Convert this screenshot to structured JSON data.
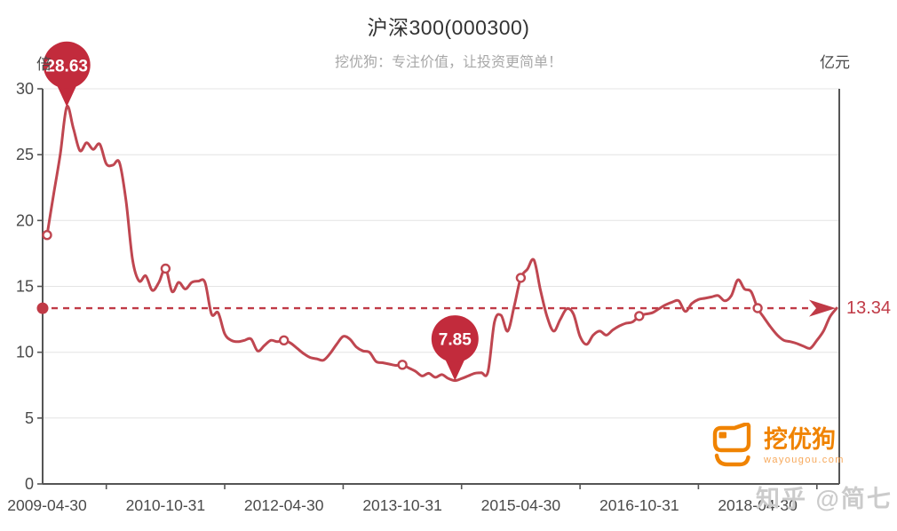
{
  "header": {
    "title": "沪深300(000300)",
    "subtitle": "挖优狗：专注价值，让投资更简单！"
  },
  "branding": {
    "logo_text": "挖优狗",
    "logo_domain": "wayougou.com",
    "logo_color": "#f08300",
    "watermark": "知乎 @简七"
  },
  "colors": {
    "line": "#bf4650",
    "marker_fill": "#ffffff",
    "balloon": "#c22b3c",
    "reference": "#c03a46",
    "axis": "#555555",
    "grid": "#e4e4e4",
    "tick_text": "#4a4a4a",
    "title_text": "#333333",
    "subtitle_text": "#a8a8a8",
    "watermark_text": "#cbcbcb"
  },
  "chart_data": {
    "type": "line",
    "title": "沪深300(000300)",
    "y_axis_unit": "倍",
    "right_axis_unit": "亿元",
    "ylim": [
      0,
      30
    ],
    "y_ticks": [
      0,
      5,
      10,
      15,
      20,
      25,
      30
    ],
    "grid": true,
    "legend": "none",
    "x_tick_labels": [
      "2009-04-30",
      "2010-10-31",
      "2012-04-30",
      "2013-10-31",
      "2015-04-30",
      "2016-10-31",
      "2018-04-30"
    ],
    "x_tick_positions": [
      0,
      18,
      36,
      54,
      72,
      90,
      108
    ],
    "x": [
      "2009-04",
      "2009-05",
      "2009-06",
      "2009-07",
      "2009-08",
      "2009-09",
      "2009-10",
      "2009-11",
      "2009-12",
      "2010-01",
      "2010-02",
      "2010-03",
      "2010-04",
      "2010-05",
      "2010-06",
      "2010-07",
      "2010-08",
      "2010-09",
      "2010-10",
      "2010-11",
      "2010-12",
      "2011-01",
      "2011-02",
      "2011-03",
      "2011-04",
      "2011-05",
      "2011-06",
      "2011-07",
      "2011-08",
      "2011-09",
      "2011-10",
      "2011-11",
      "2011-12",
      "2012-01",
      "2012-02",
      "2012-03",
      "2012-04",
      "2012-05",
      "2012-06",
      "2012-07",
      "2012-08",
      "2012-09",
      "2012-10",
      "2012-11",
      "2012-12",
      "2013-01",
      "2013-02",
      "2013-03",
      "2013-04",
      "2013-05",
      "2013-06",
      "2013-07",
      "2013-08",
      "2013-09",
      "2013-10",
      "2013-11",
      "2013-12",
      "2014-01",
      "2014-02",
      "2014-03",
      "2014-04",
      "2014-05",
      "2014-06",
      "2014-07",
      "2014-08",
      "2014-09",
      "2014-10",
      "2014-11",
      "2014-12",
      "2015-01",
      "2015-02",
      "2015-03",
      "2015-04",
      "2015-05",
      "2015-06",
      "2015-07",
      "2015-08",
      "2015-09",
      "2015-10",
      "2015-11",
      "2015-12",
      "2016-01",
      "2016-02",
      "2016-03",
      "2016-04",
      "2016-05",
      "2016-06",
      "2016-07",
      "2016-08",
      "2016-09",
      "2016-10",
      "2016-11",
      "2016-12",
      "2017-01",
      "2017-02",
      "2017-03",
      "2017-04",
      "2017-05",
      "2017-06",
      "2017-07",
      "2017-08",
      "2017-09",
      "2017-10",
      "2017-11",
      "2017-12",
      "2018-01",
      "2018-02",
      "2018-03",
      "2018-04",
      "2018-05",
      "2018-06",
      "2018-07",
      "2018-08",
      "2018-09",
      "2018-10",
      "2018-11",
      "2018-12",
      "2019-01",
      "2019-02",
      "2019-03",
      "2019-04"
    ],
    "values": [
      18.9,
      22.0,
      25.0,
      28.63,
      27.0,
      25.3,
      25.9,
      25.4,
      25.8,
      24.3,
      24.2,
      24.4,
      21.5,
      17.0,
      15.4,
      15.8,
      14.7,
      15.3,
      16.35,
      14.6,
      15.3,
      14.8,
      15.3,
      15.4,
      15.3,
      12.9,
      13.0,
      11.4,
      10.9,
      10.8,
      10.9,
      11.0,
      10.1,
      10.5,
      10.9,
      10.8,
      10.9,
      10.7,
      10.3,
      9.9,
      9.6,
      9.5,
      9.4,
      9.9,
      10.6,
      11.2,
      11.0,
      10.4,
      10.1,
      10.0,
      9.3,
      9.2,
      9.1,
      9.0,
      9.05,
      8.8,
      8.55,
      8.2,
      8.4,
      8.1,
      8.3,
      8.0,
      7.85,
      8.0,
      8.2,
      8.4,
      8.45,
      8.5,
      12.3,
      12.8,
      11.6,
      13.5,
      15.65,
      16.3,
      17.0,
      14.7,
      12.7,
      11.6,
      12.5,
      13.3,
      12.9,
      11.2,
      10.6,
      11.3,
      11.6,
      11.3,
      11.7,
      12.0,
      12.2,
      12.3,
      12.75,
      12.9,
      13.0,
      13.3,
      13.6,
      13.8,
      13.9,
      13.1,
      13.7,
      14.0,
      14.1,
      14.2,
      14.3,
      13.9,
      14.3,
      15.5,
      14.8,
      14.6,
      13.35,
      12.6,
      11.9,
      11.3,
      10.9,
      10.8,
      10.65,
      10.45,
      10.3,
      10.9,
      11.6,
      12.7,
      13.34
    ],
    "markers_at": [
      "2009-04",
      "2010-10",
      "2012-04",
      "2013-10",
      "2015-04",
      "2016-10",
      "2018-04"
    ],
    "annotations": [
      {
        "type": "balloon",
        "x": "2009-07",
        "value": 28.63,
        "label": "28.63"
      },
      {
        "type": "balloon",
        "x": "2014-06",
        "value": 7.85,
        "label": "7.85"
      }
    ],
    "reference_line": {
      "value": 13.34,
      "label": "13.34",
      "style": "dashed-arrow"
    }
  }
}
